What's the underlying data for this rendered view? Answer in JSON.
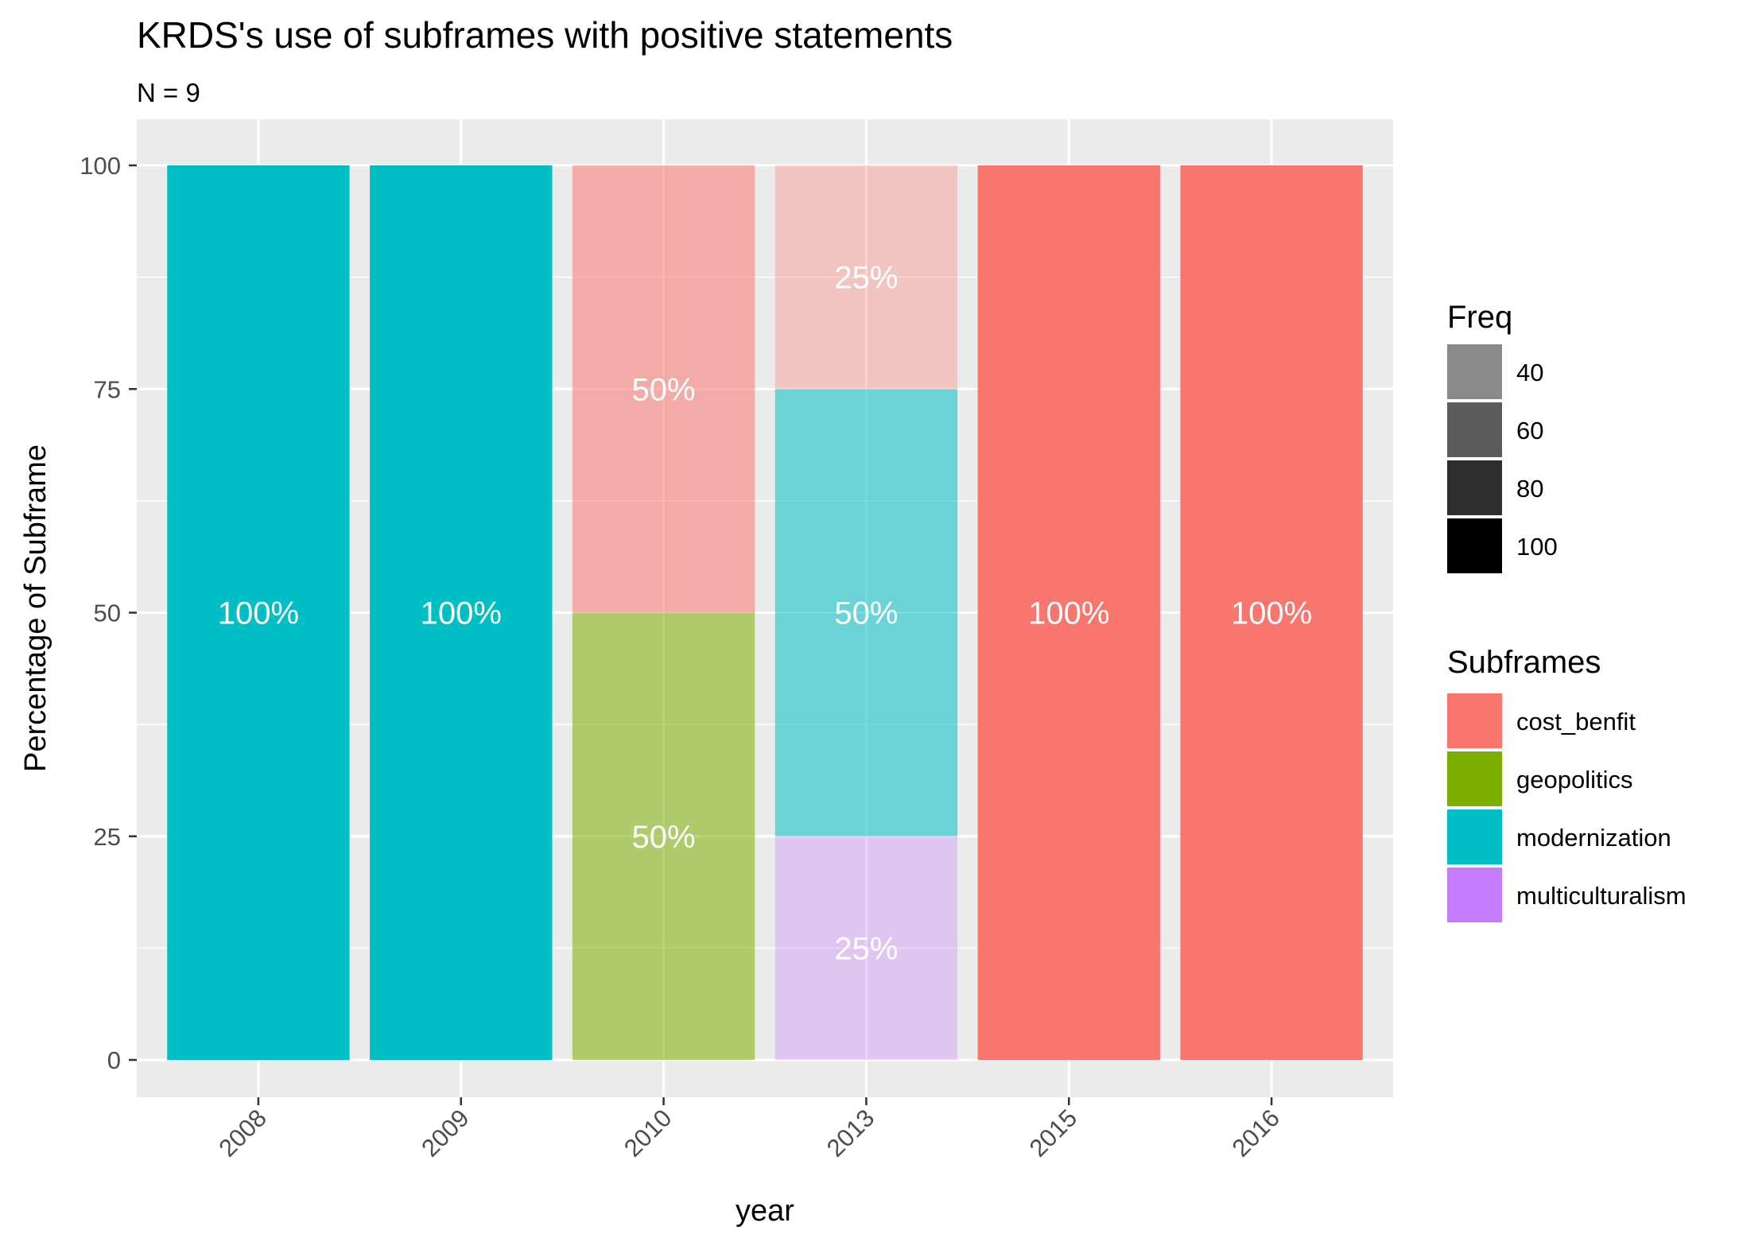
{
  "chart_data": {
    "type": "bar",
    "stacked": true,
    "title": "KRDS's use of subframes with positive statements",
    "subtitle": "N = 9",
    "xlabel": "year",
    "ylabel": "Percentage of Subframe",
    "ylim": [
      0,
      100
    ],
    "yticks": [
      0,
      25,
      50,
      75,
      100
    ],
    "grid": true,
    "legend_position": "right",
    "categories": [
      "2008",
      "2009",
      "2010",
      "2013",
      "2015",
      "2016"
    ],
    "series": [
      {
        "name": "cost_benfit",
        "color": "#F8766D",
        "values": [
          0,
          0,
          50,
          25,
          100,
          100
        ],
        "freq": [
          0,
          0,
          50,
          25,
          100,
          100
        ]
      },
      {
        "name": "geopolitics",
        "color": "#7CAE00",
        "values": [
          0,
          0,
          50,
          0,
          0,
          0
        ],
        "freq": [
          0,
          0,
          50,
          0,
          0,
          0
        ]
      },
      {
        "name": "modernization",
        "color": "#00BFC4",
        "values": [
          100,
          100,
          0,
          50,
          0,
          0
        ],
        "freq": [
          100,
          100,
          0,
          50,
          0,
          0
        ]
      },
      {
        "name": "multiculturalism",
        "color": "#C77CFF",
        "values": [
          0,
          0,
          0,
          25,
          0,
          0
        ],
        "freq": [
          0,
          0,
          0,
          25,
          0,
          0
        ]
      }
    ],
    "stack_order_bottom_to_top": [
      "multiculturalism",
      "modernization",
      "geopolitics",
      "cost_benfit"
    ],
    "legends": {
      "freq": {
        "title": "Freq",
        "values": [
          40,
          60,
          80,
          100
        ]
      },
      "subframes": {
        "title": "Subframes"
      }
    }
  }
}
